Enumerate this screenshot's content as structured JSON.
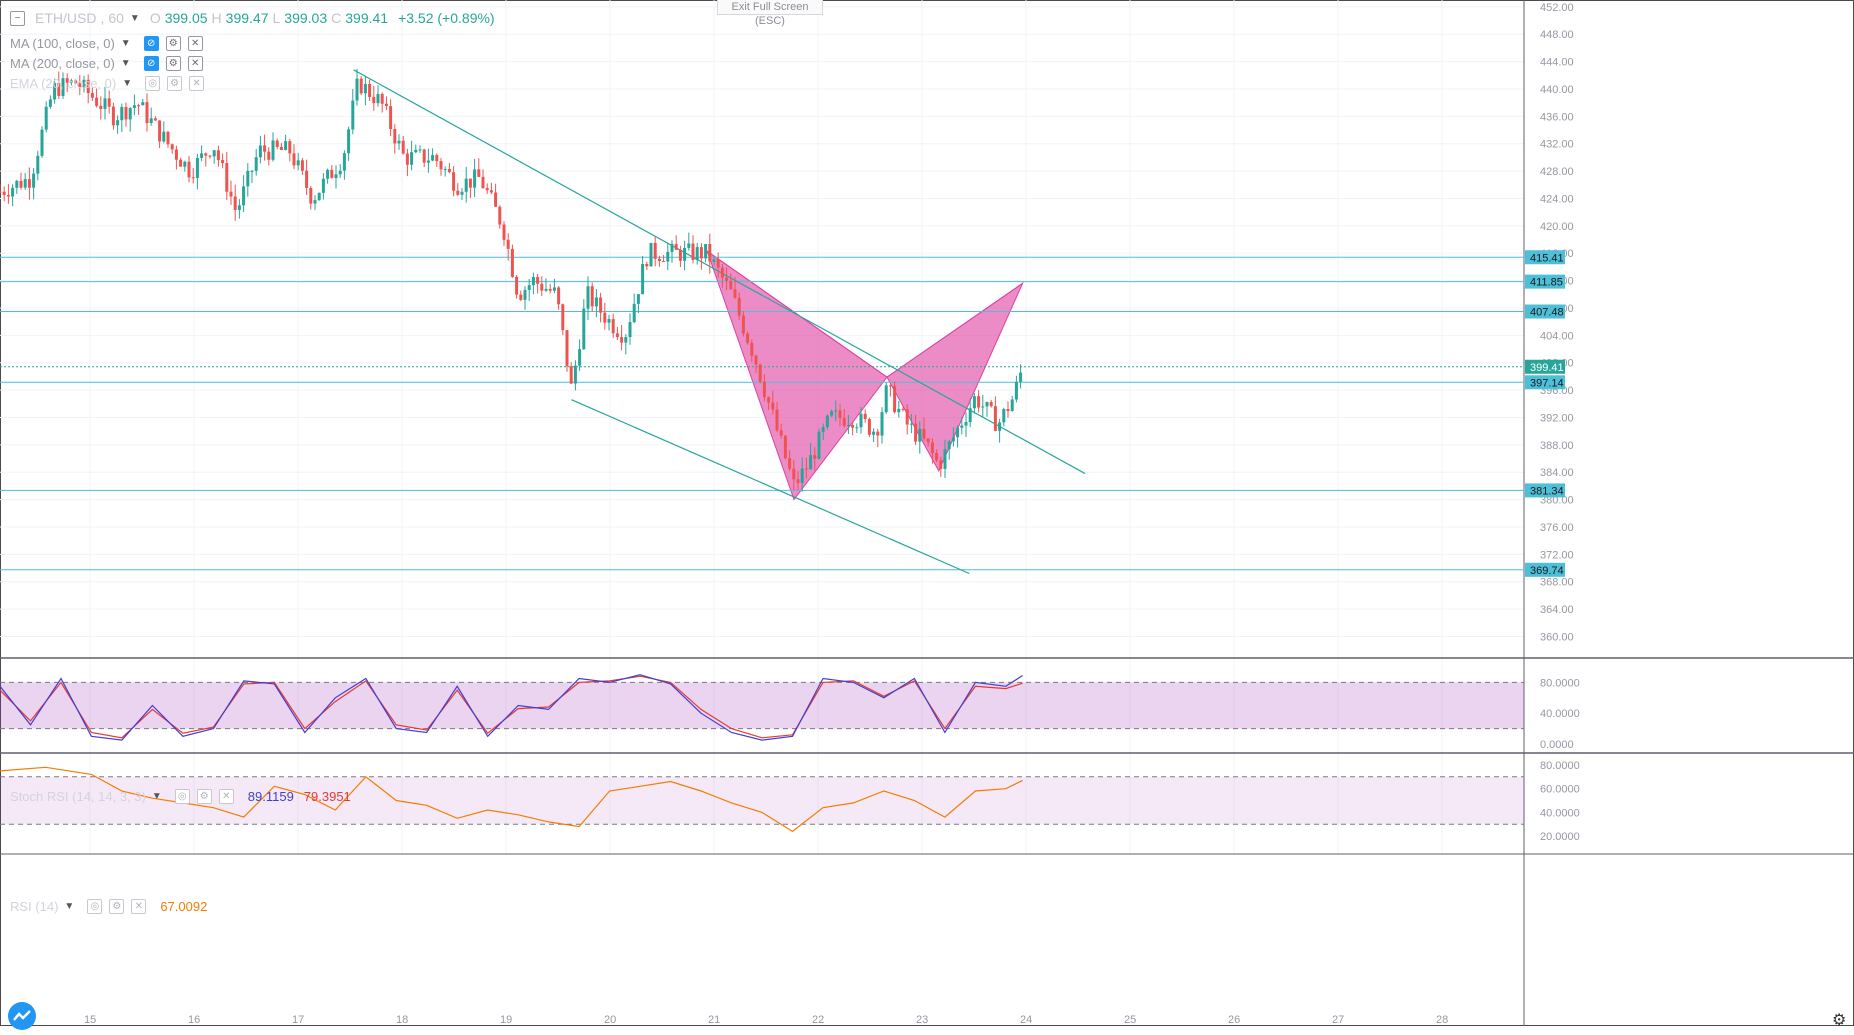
{
  "symbol": {
    "name": "ETH/USD",
    "interval": "60"
  },
  "ohlc": {
    "open": "399.05",
    "high": "399.47",
    "low": "399.03",
    "close": "399.41",
    "change": "+3.52 (+0.89%)",
    "open_label": "O",
    "high_label": "H",
    "low_label": "L",
    "close_label": "C"
  },
  "indicators": [
    {
      "label": "MA (100, close, 0)"
    },
    {
      "label": "MA (200, close, 0)"
    },
    {
      "label": "EMA (20, close, 0)"
    }
  ],
  "toolbar": {
    "exit_fullscreen": "Exit Full Screen (ESC)"
  },
  "stoch_rsi": {
    "label": "Stoch RSI (14, 14, 3, 3)",
    "k_value": "89.1159",
    "d_value": "79.3951",
    "k_color": "#3f3fd1",
    "d_color": "#e53935",
    "upper": 80,
    "lower": 20
  },
  "rsi": {
    "label": "RSI (14)",
    "value": "67.0092",
    "color": "#f57c00",
    "upper": 70,
    "lower": 30
  },
  "colors": {
    "up": "#26a69a",
    "down": "#ef5350",
    "pattern": "#e040a0",
    "hline": "#4dbfd8",
    "trend": "#26a69a",
    "price_tag": "#4dbfd8"
  },
  "price_axis": {
    "ticks": [
      "452.00",
      "448.00",
      "444.00",
      "440.00",
      "436.00",
      "432.00",
      "428.00",
      "424.00",
      "420.00",
      "416.00",
      "412.00",
      "408.00",
      "404.00",
      "400.00",
      "396.00",
      "392.00",
      "388.00",
      "384.00",
      "380.00",
      "376.00",
      "372.00",
      "368.00",
      "364.00",
      "360.00"
    ]
  },
  "horizontal_levels": [
    "415.41",
    "411.85",
    "407.48",
    "397.14",
    "381.34",
    "369.74"
  ],
  "last_price": "399.41",
  "stoch_axis": {
    "ticks": [
      "80.0000",
      "40.0000",
      "0.0000"
    ]
  },
  "rsi_axis": {
    "ticks": [
      "80.0000",
      "60.0000",
      "40.0000",
      "20.0000"
    ]
  },
  "time_axis": {
    "ticks": [
      "15",
      "16",
      "17",
      "18",
      "19",
      "20",
      "21",
      "22",
      "23",
      "24",
      "25",
      "26",
      "27",
      "28"
    ]
  },
  "chart_data": {
    "type": "candlestick",
    "price_range": [
      357,
      453
    ],
    "hlines": [
      415.41,
      411.85,
      407.48,
      397.14,
      381.34,
      369.74
    ],
    "trendlines": [
      {
        "from": [
          0.232,
          442.8
        ],
        "to": [
          0.712,
          383.8
        ]
      },
      {
        "from": [
          0.375,
          394.6
        ],
        "to": [
          0.636,
          369.2
        ]
      }
    ],
    "harmonic_pattern": [
      [
        0.464,
        416.3
      ],
      [
        0.521,
        380.0
      ],
      [
        0.582,
        397.9
      ],
      [
        0.616,
        384.2
      ],
      [
        0.671,
        411.6
      ]
    ],
    "price_path": [
      [
        0.0,
        425
      ],
      [
        0.02,
        427
      ],
      [
        0.035,
        440
      ],
      [
        0.05,
        441
      ],
      [
        0.075,
        436
      ],
      [
        0.09,
        438
      ],
      [
        0.11,
        432
      ],
      [
        0.125,
        428
      ],
      [
        0.14,
        432
      ],
      [
        0.155,
        422
      ],
      [
        0.17,
        431
      ],
      [
        0.19,
        431
      ],
      [
        0.205,
        424
      ],
      [
        0.225,
        430
      ],
      [
        0.235,
        441
      ],
      [
        0.25,
        438
      ],
      [
        0.265,
        430
      ],
      [
        0.285,
        430
      ],
      [
        0.3,
        426
      ],
      [
        0.315,
        427
      ],
      [
        0.33,
        420
      ],
      [
        0.34,
        410
      ],
      [
        0.35,
        412
      ],
      [
        0.365,
        410
      ],
      [
        0.375,
        396
      ],
      [
        0.385,
        410
      ],
      [
        0.4,
        406
      ],
      [
        0.41,
        404
      ],
      [
        0.425,
        416
      ],
      [
        0.44,
        416
      ],
      [
        0.455,
        416
      ],
      [
        0.464,
        416
      ],
      [
        0.48,
        410
      ],
      [
        0.495,
        401
      ],
      [
        0.51,
        390
      ],
      [
        0.521,
        382
      ],
      [
        0.53,
        385
      ],
      [
        0.545,
        392
      ],
      [
        0.56,
        392
      ],
      [
        0.575,
        390
      ],
      [
        0.582,
        396
      ],
      [
        0.595,
        391
      ],
      [
        0.608,
        388
      ],
      [
        0.616,
        385
      ],
      [
        0.63,
        391
      ],
      [
        0.64,
        395
      ],
      [
        0.655,
        391
      ],
      [
        0.665,
        395
      ],
      [
        0.671,
        399.4
      ]
    ],
    "stoch_k_path": [
      [
        0.0,
        75
      ],
      [
        0.02,
        25
      ],
      [
        0.04,
        85
      ],
      [
        0.06,
        10
      ],
      [
        0.08,
        5
      ],
      [
        0.1,
        50
      ],
      [
        0.12,
        10
      ],
      [
        0.14,
        20
      ],
      [
        0.16,
        82
      ],
      [
        0.18,
        78
      ],
      [
        0.2,
        15
      ],
      [
        0.22,
        60
      ],
      [
        0.24,
        85
      ],
      [
        0.26,
        20
      ],
      [
        0.28,
        15
      ],
      [
        0.3,
        75
      ],
      [
        0.32,
        10
      ],
      [
        0.34,
        50
      ],
      [
        0.36,
        45
      ],
      [
        0.38,
        85
      ],
      [
        0.4,
        80
      ],
      [
        0.42,
        90
      ],
      [
        0.44,
        78
      ],
      [
        0.46,
        40
      ],
      [
        0.48,
        15
      ],
      [
        0.5,
        5
      ],
      [
        0.52,
        10
      ],
      [
        0.54,
        85
      ],
      [
        0.56,
        80
      ],
      [
        0.58,
        60
      ],
      [
        0.6,
        85
      ],
      [
        0.62,
        15
      ],
      [
        0.64,
        80
      ],
      [
        0.66,
        75
      ],
      [
        0.671,
        89
      ]
    ],
    "stoch_d_path": [
      [
        0.0,
        70
      ],
      [
        0.02,
        30
      ],
      [
        0.04,
        80
      ],
      [
        0.06,
        15
      ],
      [
        0.08,
        8
      ],
      [
        0.1,
        45
      ],
      [
        0.12,
        14
      ],
      [
        0.14,
        22
      ],
      [
        0.16,
        78
      ],
      [
        0.18,
        80
      ],
      [
        0.2,
        20
      ],
      [
        0.22,
        55
      ],
      [
        0.24,
        82
      ],
      [
        0.26,
        25
      ],
      [
        0.28,
        18
      ],
      [
        0.3,
        70
      ],
      [
        0.32,
        14
      ],
      [
        0.34,
        46
      ],
      [
        0.36,
        48
      ],
      [
        0.38,
        80
      ],
      [
        0.4,
        82
      ],
      [
        0.42,
        88
      ],
      [
        0.44,
        80
      ],
      [
        0.46,
        45
      ],
      [
        0.48,
        20
      ],
      [
        0.5,
        8
      ],
      [
        0.52,
        12
      ],
      [
        0.54,
        80
      ],
      [
        0.56,
        82
      ],
      [
        0.58,
        62
      ],
      [
        0.6,
        82
      ],
      [
        0.62,
        20
      ],
      [
        0.64,
        75
      ],
      [
        0.66,
        72
      ],
      [
        0.671,
        79
      ]
    ],
    "rsi_path": [
      [
        0.0,
        75
      ],
      [
        0.03,
        78
      ],
      [
        0.06,
        72
      ],
      [
        0.08,
        58
      ],
      [
        0.1,
        52
      ],
      [
        0.12,
        48
      ],
      [
        0.14,
        44
      ],
      [
        0.16,
        36
      ],
      [
        0.18,
        62
      ],
      [
        0.2,
        55
      ],
      [
        0.22,
        42
      ],
      [
        0.24,
        70
      ],
      [
        0.26,
        50
      ],
      [
        0.28,
        46
      ],
      [
        0.3,
        35
      ],
      [
        0.32,
        42
      ],
      [
        0.34,
        38
      ],
      [
        0.36,
        32
      ],
      [
        0.38,
        28
      ],
      [
        0.4,
        58
      ],
      [
        0.42,
        62
      ],
      [
        0.44,
        66
      ],
      [
        0.46,
        58
      ],
      [
        0.48,
        48
      ],
      [
        0.5,
        40
      ],
      [
        0.52,
        24
      ],
      [
        0.54,
        44
      ],
      [
        0.56,
        48
      ],
      [
        0.58,
        58
      ],
      [
        0.6,
        50
      ],
      [
        0.62,
        36
      ],
      [
        0.64,
        58
      ],
      [
        0.66,
        60
      ],
      [
        0.671,
        67
      ]
    ]
  }
}
